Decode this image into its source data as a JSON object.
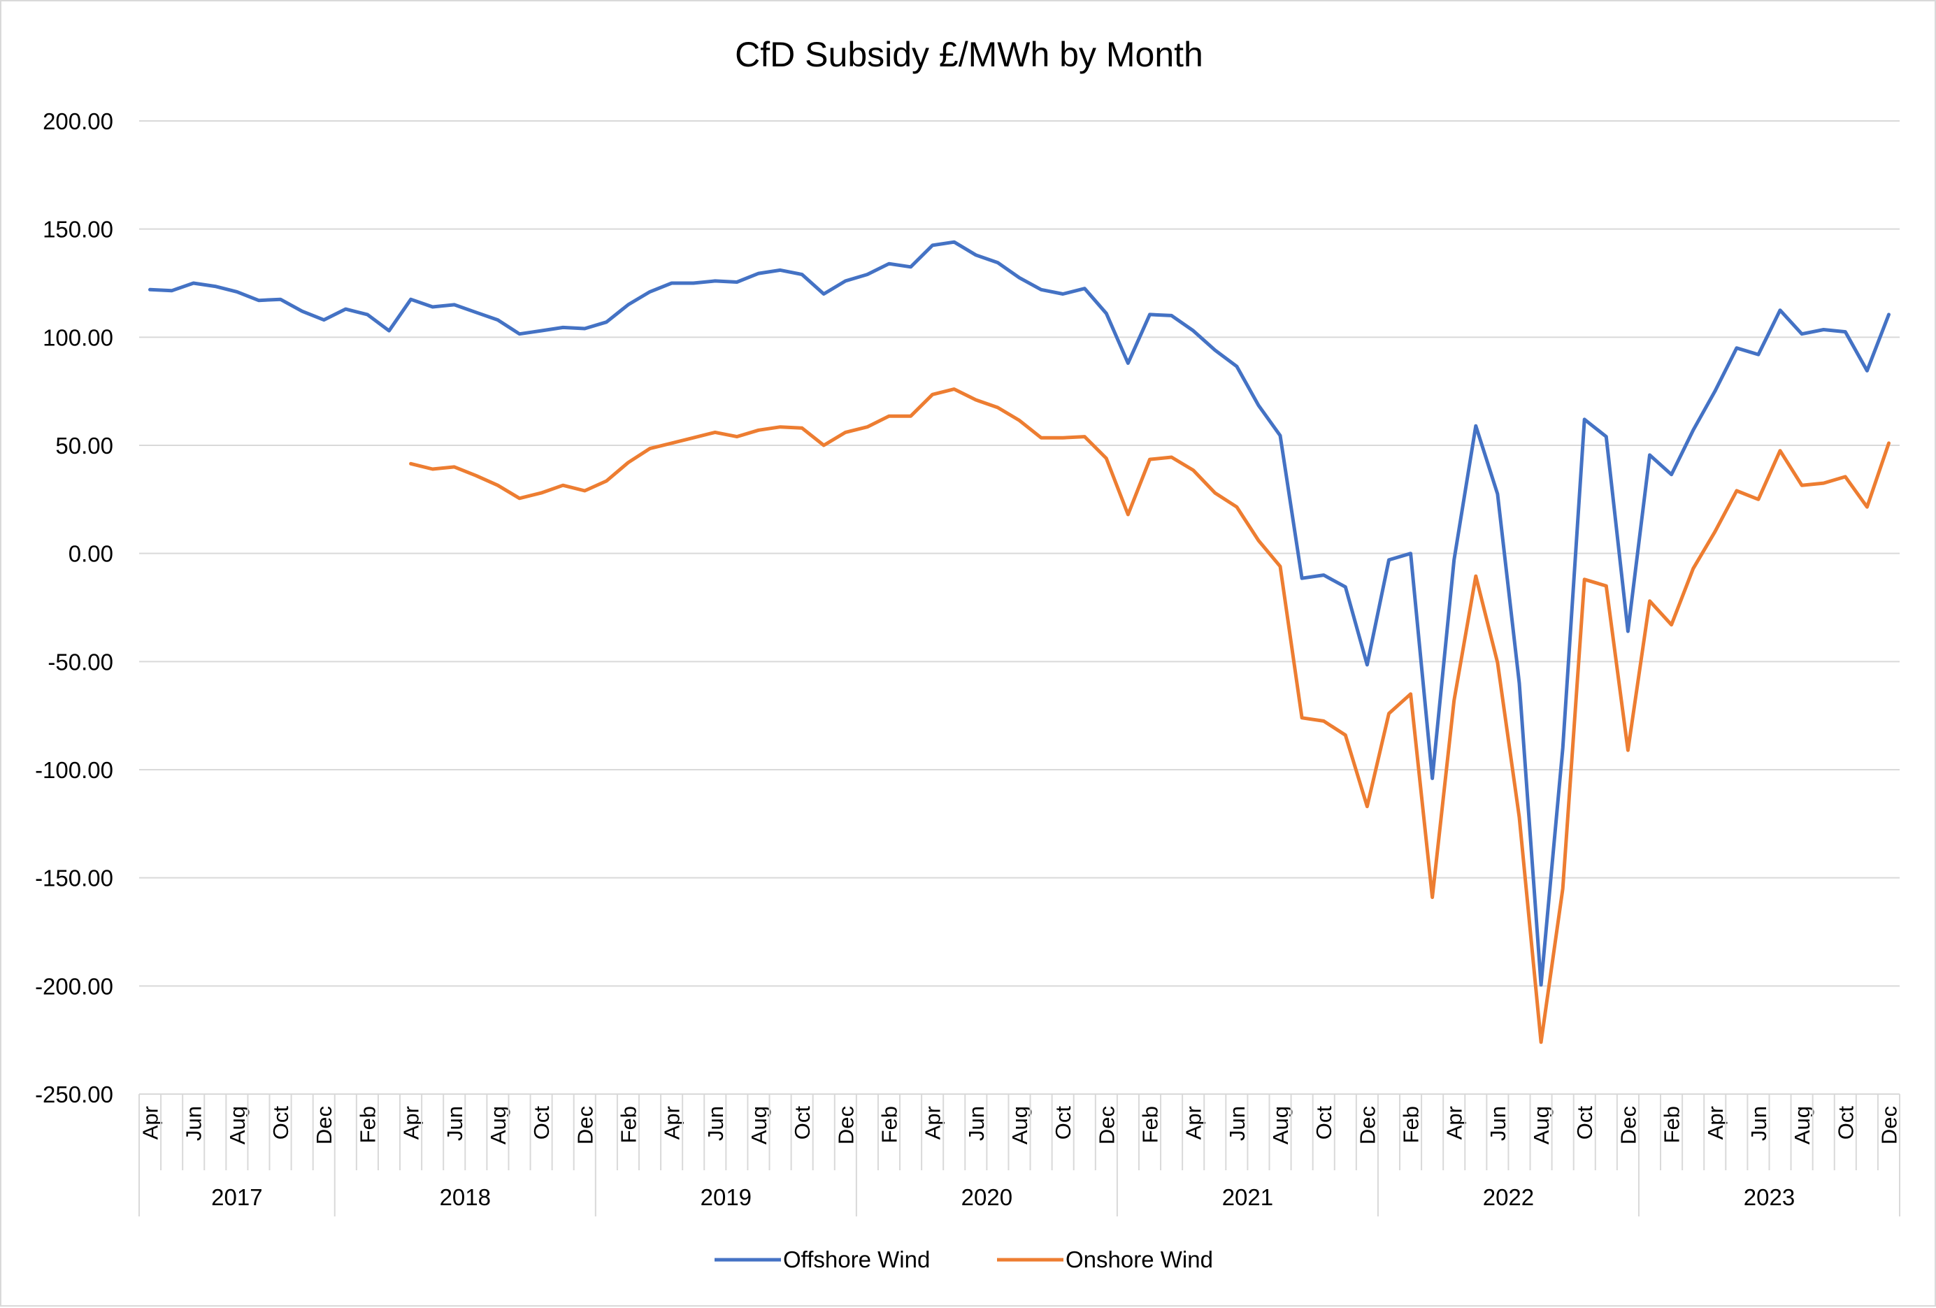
{
  "chart_data": {
    "type": "line",
    "title": "CfD Subsidy £/MWh by Month",
    "xlabel": "",
    "ylabel": "",
    "ylim": [
      -250,
      200
    ],
    "yticks": [
      "200.00",
      "150.00",
      "100.00",
      "50.00",
      "0.00",
      "-50.00",
      "-100.00",
      "-150.00",
      "-200.00",
      "-250.00"
    ],
    "grid": true,
    "legend_position": "bottom",
    "x": [
      "2017-04",
      "2017-05",
      "2017-06",
      "2017-07",
      "2017-08",
      "2017-09",
      "2017-10",
      "2017-11",
      "2017-12",
      "2018-01",
      "2018-02",
      "2018-03",
      "2018-04",
      "2018-05",
      "2018-06",
      "2018-07",
      "2018-08",
      "2018-09",
      "2018-10",
      "2018-11",
      "2018-12",
      "2019-01",
      "2019-02",
      "2019-03",
      "2019-04",
      "2019-05",
      "2019-06",
      "2019-07",
      "2019-08",
      "2019-09",
      "2019-10",
      "2019-11",
      "2019-12",
      "2020-01",
      "2020-02",
      "2020-03",
      "2020-04",
      "2020-05",
      "2020-06",
      "2020-07",
      "2020-08",
      "2020-09",
      "2020-10",
      "2020-11",
      "2020-12",
      "2021-01",
      "2021-02",
      "2021-03",
      "2021-04",
      "2021-05",
      "2021-06",
      "2021-07",
      "2021-08",
      "2021-09",
      "2021-10",
      "2021-11",
      "2021-12",
      "2022-01",
      "2022-02",
      "2022-03",
      "2022-04",
      "2022-05",
      "2022-06",
      "2022-07",
      "2022-08",
      "2022-09",
      "2022-10",
      "2022-11",
      "2022-12",
      "2023-01",
      "2023-02",
      "2023-03",
      "2023-04",
      "2023-05",
      "2023-06",
      "2023-07",
      "2023-08",
      "2023-09",
      "2023-10",
      "2023-11",
      "2023-12"
    ],
    "month_tick_labels": [
      "Apr",
      "Jun",
      "Aug",
      "Oct",
      "Dec",
      "Feb",
      "Apr",
      "Jun",
      "Aug",
      "Oct",
      "Dec",
      "Feb",
      "Apr",
      "Jun",
      "Aug",
      "Oct",
      "Dec",
      "Feb",
      "Apr",
      "Jun",
      "Aug",
      "Oct",
      "Dec",
      "Feb",
      "Apr",
      "Jun",
      "Aug",
      "Oct",
      "Dec",
      "Feb",
      "Apr",
      "Jun",
      "Aug",
      "Oct",
      "Dec",
      "Feb",
      "Apr",
      "Jun",
      "Aug",
      "Oct",
      "Dec"
    ],
    "year_labels": [
      "2017",
      "2018",
      "2019",
      "2020",
      "2021",
      "2022",
      "2023"
    ],
    "series": [
      {
        "name": "Offshore Wind",
        "color": "#4472c4",
        "values": [
          122,
          121.5,
          125,
          123.5,
          121,
          117,
          117.5,
          112,
          108,
          113,
          110.5,
          103,
          117.5,
          114,
          115,
          111.5,
          108,
          101.5,
          103,
          104.5,
          104,
          107,
          115,
          121,
          125,
          125,
          126,
          125.5,
          129.5,
          131,
          129,
          120,
          126,
          129,
          134,
          132.5,
          142.5,
          144,
          138,
          134.5,
          127.5,
          122,
          120,
          122.5,
          111,
          88,
          110.5,
          110,
          103,
          94,
          86.5,
          68.5,
          54.5,
          -11.5,
          -10,
          -15.5,
          -51.5,
          -3,
          0,
          -104,
          -3,
          59,
          27.5,
          -60,
          -199.5,
          -90,
          62,
          54,
          -36,
          45.5,
          36.5,
          57,
          75,
          95,
          92,
          112.5,
          101.5,
          103.5,
          102.5,
          84.5,
          110.5
        ]
      },
      {
        "name": "Onshore Wind",
        "color": "#ed7d31",
        "values": [
          null,
          null,
          null,
          null,
          null,
          null,
          null,
          null,
          null,
          null,
          null,
          null,
          41.5,
          39,
          40,
          36,
          31.5,
          25.5,
          28,
          31.5,
          29,
          33.5,
          42,
          48.5,
          51,
          53.5,
          56,
          54,
          57,
          58.5,
          58,
          50,
          56,
          58.5,
          63.5,
          63.5,
          73.5,
          76,
          71,
          67.5,
          61.5,
          53.5,
          53.5,
          54,
          44,
          18,
          43.5,
          44.5,
          38.5,
          28,
          21.5,
          6,
          -6,
          -76,
          -77.5,
          -84,
          -117,
          -74,
          -65,
          -159,
          -68,
          -10.5,
          -50.5,
          -122,
          -226,
          -155,
          -12,
          -15,
          -91,
          -22,
          -33,
          -7,
          10,
          29,
          25,
          47.5,
          31.5,
          32.5,
          35.5,
          21.5,
          51
        ]
      }
    ]
  }
}
